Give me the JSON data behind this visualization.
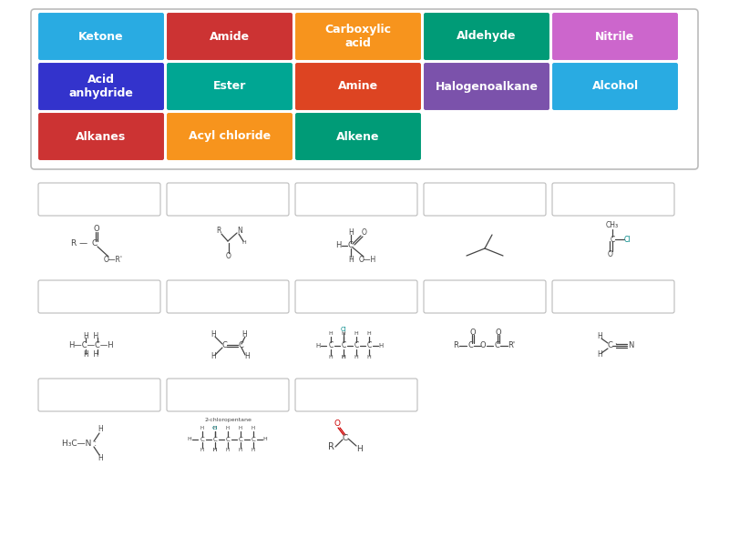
{
  "title_boxes": [
    {
      "label": "Ketone",
      "color": "#29ABE2",
      "row": 0,
      "col": 0
    },
    {
      "label": "Amide",
      "color": "#CC3333",
      "row": 0,
      "col": 1
    },
    {
      "label": "Carboxylic\nacid",
      "color": "#F7941D",
      "row": 0,
      "col": 2
    },
    {
      "label": "Aldehyde",
      "color": "#009B77",
      "row": 0,
      "col": 3
    },
    {
      "label": "Nitrile",
      "color": "#CC66CC",
      "row": 0,
      "col": 4
    },
    {
      "label": "Acid\nanhydride",
      "color": "#3333CC",
      "row": 1,
      "col": 0
    },
    {
      "label": "Ester",
      "color": "#00A693",
      "row": 1,
      "col": 1
    },
    {
      "label": "Amine",
      "color": "#DD4422",
      "row": 1,
      "col": 2
    },
    {
      "label": "Halogenoalkane",
      "color": "#7B52AB",
      "row": 1,
      "col": 3
    },
    {
      "label": "Alcohol",
      "color": "#29ABE2",
      "row": 1,
      "col": 4
    },
    {
      "label": "Alkanes",
      "color": "#CC3333",
      "row": 2,
      "col": 0
    },
    {
      "label": "Acyl chloride",
      "color": "#F7941D",
      "row": 2,
      "col": 1
    },
    {
      "label": "Alkene",
      "color": "#009B77",
      "row": 2,
      "col": 2
    }
  ],
  "background": "#FFFFFF"
}
